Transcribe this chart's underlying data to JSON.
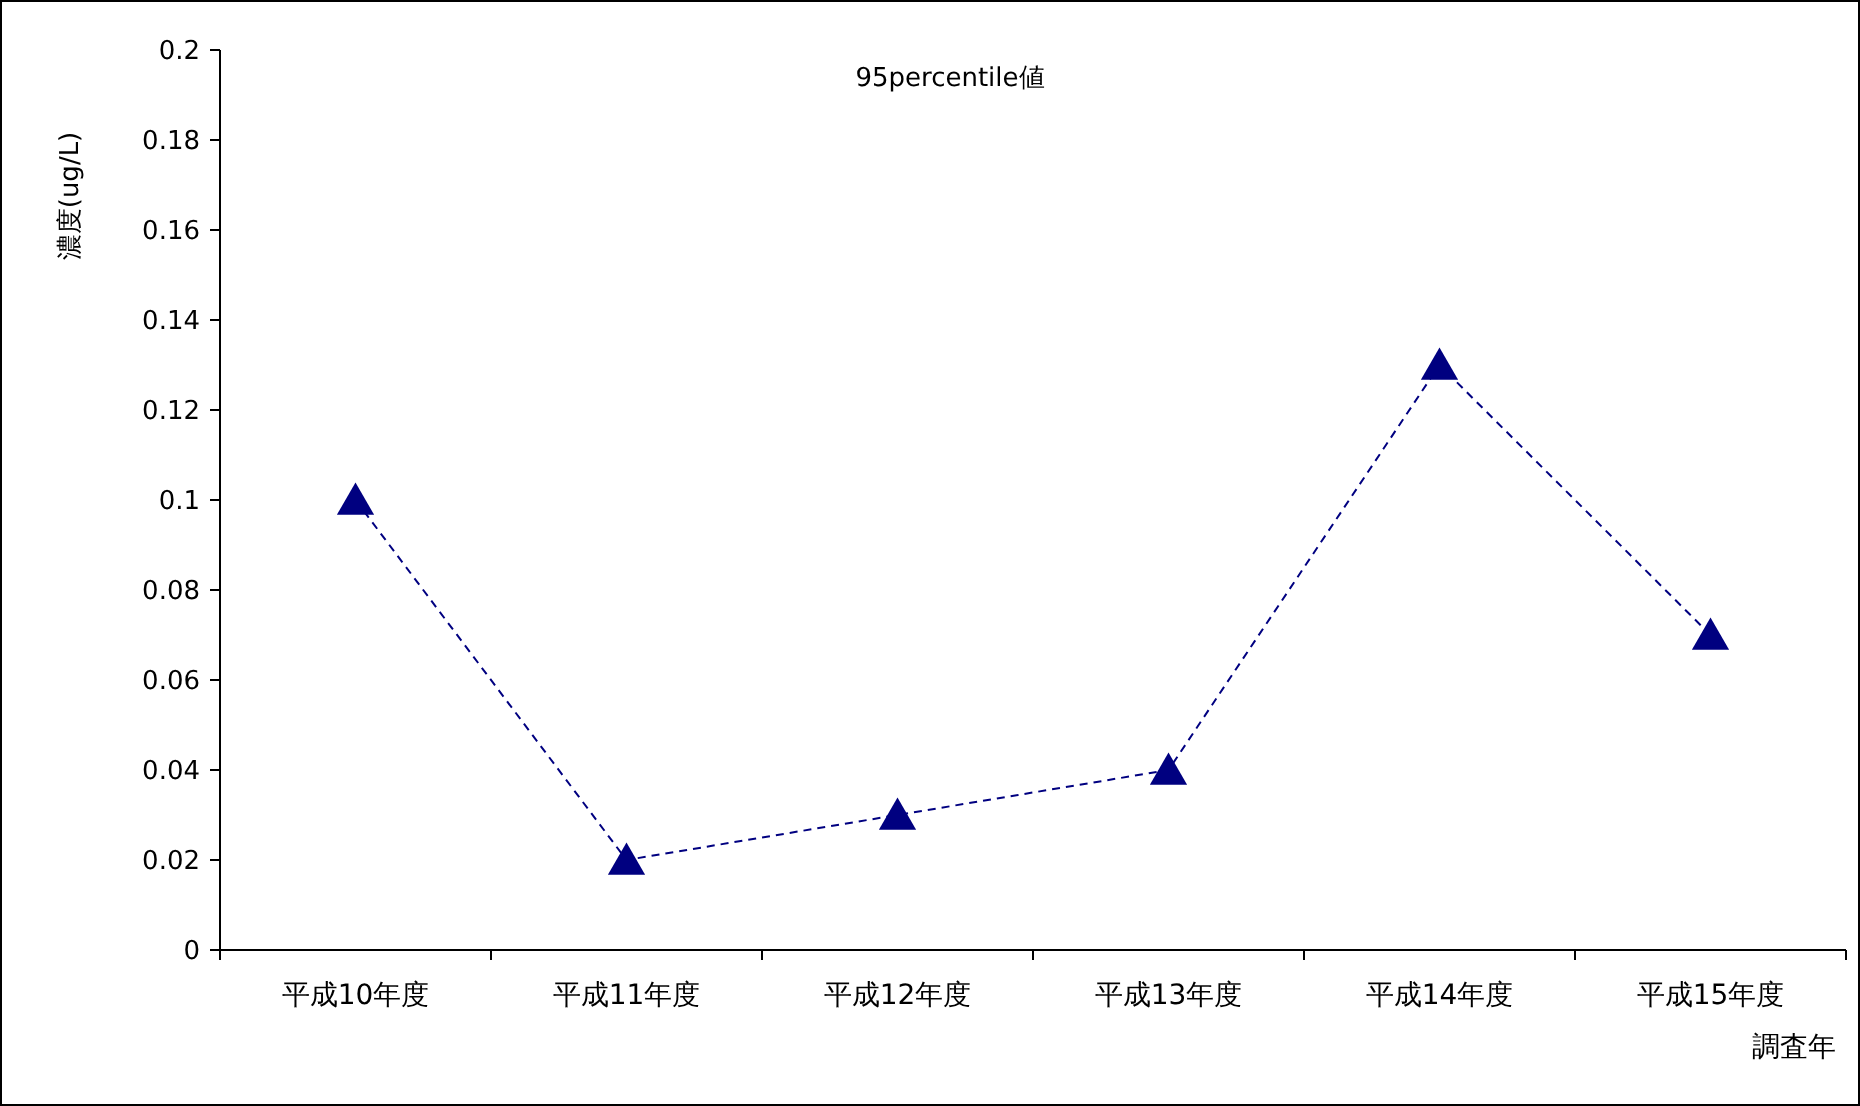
{
  "chart_data": {
    "type": "line",
    "title": "95percentile値",
    "ylabel": "濃度(ug/L)",
    "xlabel": "調査年",
    "categories": [
      "平成10年度",
      "平成11年度",
      "平成12年度",
      "平成13年度",
      "平成14年度",
      "平成15年度"
    ],
    "series": [
      {
        "color": "#000080",
        "values": [
          0.1,
          0.02,
          0.03,
          0.04,
          0.13,
          0.07
        ]
      }
    ],
    "ylim": [
      0,
      0.2
    ],
    "yticks": [
      0,
      0.02,
      0.04,
      0.06,
      0.08,
      0.1,
      0.12,
      0.14,
      0.16,
      0.18,
      0.2
    ],
    "grid": false,
    "marker": "triangle",
    "line_style": "dashed"
  }
}
